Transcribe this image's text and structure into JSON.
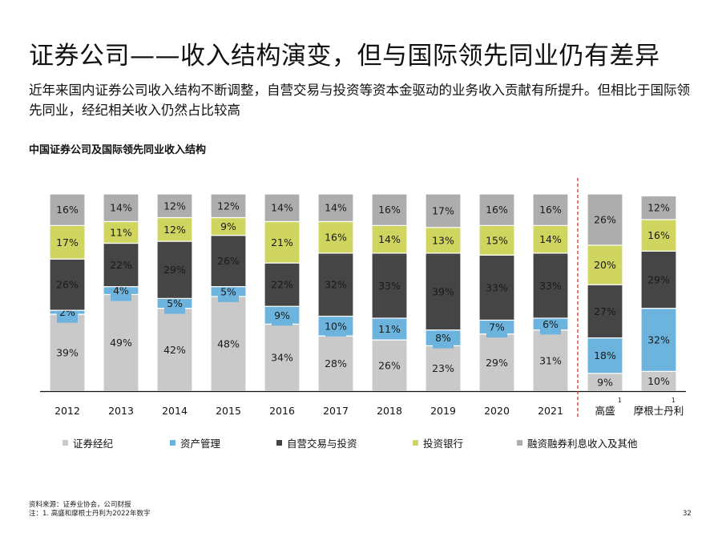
{
  "title": "证券公司——收入结构演变，但与国际领先同业仍有差异",
  "subtitle": "近年来国内证券公司收入结构不断调整，自营交易与投资等资本金驱动的业务收入贡献有所提升。但相比于国际领先同业，经纪相关收入仍然占比较高",
  "chart_data": {
    "type": "bar",
    "stacked": true,
    "percent": true,
    "title": "中国证券公司及国际领先同业收入结构",
    "categories": [
      "2012",
      "2013",
      "2014",
      "2015",
      "2016",
      "2017",
      "2018",
      "2019",
      "2020",
      "2021",
      "高盛",
      "摩根士丹利"
    ],
    "category_footnotes": [
      "",
      "",
      "",
      "",
      "",
      "",
      "",
      "",
      "",
      "",
      "1",
      "1"
    ],
    "ylim": [
      0,
      100
    ],
    "grid": false,
    "divider_after_category": "2021",
    "divider_color": "#e03030",
    "legend_position": "bottom",
    "series": [
      {
        "name": "证券经纪",
        "color": "#c9c9c9",
        "values": [
          39,
          49,
          42,
          48,
          34,
          28,
          26,
          23,
          29,
          31,
          9,
          10
        ]
      },
      {
        "name": "资产管理",
        "color": "#6cb4de",
        "values": [
          2,
          4,
          5,
          5,
          9,
          10,
          11,
          8,
          7,
          6,
          18,
          32
        ]
      },
      {
        "name": "自营交易与投资",
        "color": "#454545",
        "values": [
          26,
          22,
          29,
          26,
          22,
          32,
          33,
          39,
          33,
          33,
          27,
          29
        ]
      },
      {
        "name": "投资银行",
        "color": "#cfd55f",
        "values": [
          17,
          11,
          12,
          9,
          21,
          16,
          14,
          13,
          15,
          14,
          20,
          16
        ]
      },
      {
        "name": "融资融券利息收入及其他",
        "color": "#adadad",
        "values": [
          16,
          14,
          12,
          12,
          14,
          14,
          16,
          17,
          16,
          16,
          26,
          12
        ]
      }
    ]
  },
  "footer": {
    "source": "资料来源：证券业协会，公司财报",
    "note": "注：1. 高盛和摩根士丹利为2022年数字",
    "page_number": "32"
  }
}
